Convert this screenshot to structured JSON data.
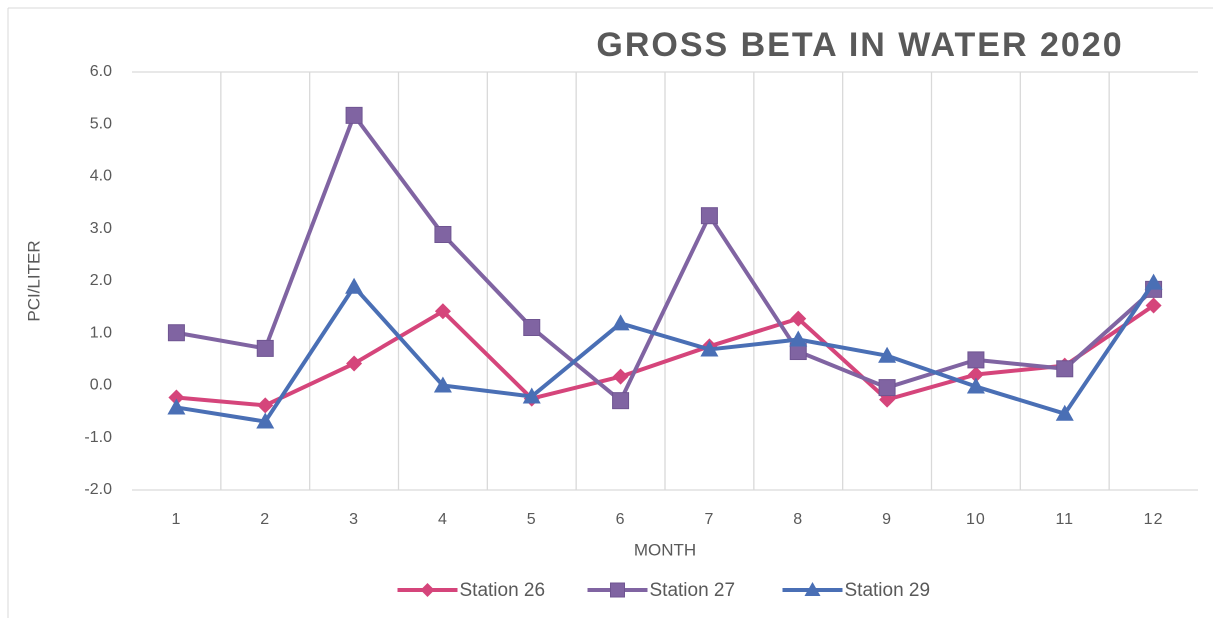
{
  "chart_data": {
    "type": "line",
    "title": "GROSS BETA IN WATER 2020",
    "x_label": "MONTH",
    "y_label": "PCI/LITER",
    "categories": [
      "1",
      "2",
      "3",
      "4",
      "5",
      "6",
      "7",
      "8",
      "9",
      "10",
      "11",
      "12"
    ],
    "series": [
      {
        "name": "Station 26",
        "color": "#d5457b",
        "marker": "diamond",
        "values": [
          -0.23,
          -0.38,
          0.42,
          1.42,
          -0.25,
          0.17,
          0.75,
          1.28,
          -0.27,
          0.21,
          0.38,
          1.53
        ]
      },
      {
        "name": "Station 27",
        "color": "#8064a2",
        "marker": "square",
        "values": [
          1.01,
          0.71,
          5.17,
          2.89,
          1.11,
          -0.29,
          3.25,
          0.65,
          -0.04,
          0.49,
          0.32,
          1.84
        ]
      },
      {
        "name": "Station 29",
        "color": "#4a6fb5",
        "marker": "triangle",
        "values": [
          -0.42,
          -0.69,
          1.89,
          0.0,
          -0.21,
          1.19,
          0.69,
          0.88,
          0.57,
          -0.02,
          -0.54,
          1.97
        ]
      }
    ],
    "ylim": [
      -2,
      6
    ],
    "yticks": [
      {
        "value": -2,
        "label": "-2.0"
      },
      {
        "value": -1,
        "label": "-1.0"
      },
      {
        "value": 0,
        "label": "0.0"
      },
      {
        "value": 1,
        "label": "1.0"
      },
      {
        "value": 2,
        "label": "2.0"
      },
      {
        "value": 3,
        "label": "3.0"
      },
      {
        "value": 4,
        "label": "4.0"
      },
      {
        "value": 5,
        "label": "5.0"
      },
      {
        "value": 6,
        "label": "6.0"
      }
    ],
    "grid": "x",
    "legend": "bottom"
  }
}
